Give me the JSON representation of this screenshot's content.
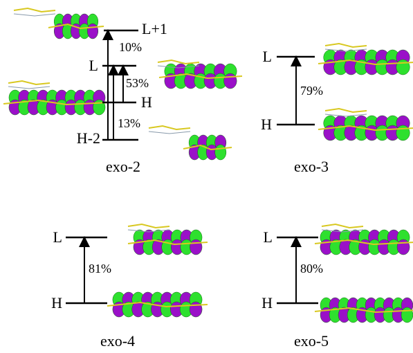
{
  "panels": [
    {
      "name": "exo-2",
      "levels": [
        "L+1",
        "L",
        "H",
        "H-2"
      ],
      "transitions": [
        "10%",
        "53%",
        "13%"
      ]
    },
    {
      "name": "exo-3",
      "levels": [
        "L",
        "H"
      ],
      "transitions": [
        "79%"
      ]
    },
    {
      "name": "exo-4",
      "levels": [
        "L",
        "H"
      ],
      "transitions": [
        "81%"
      ]
    },
    {
      "name": "exo-5",
      "levels": [
        "L",
        "H"
      ],
      "transitions": [
        "80%"
      ]
    }
  ]
}
